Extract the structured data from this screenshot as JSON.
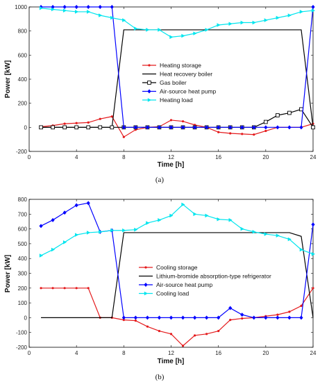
{
  "chart_data": [
    {
      "type": "line",
      "caption": "(a)",
      "xlabel": "Time [h]",
      "ylabel": "Power [kW]",
      "xlim": [
        0,
        24
      ],
      "ylim": [
        -200,
        1000
      ],
      "xticks": [
        0,
        4,
        8,
        12,
        16,
        20,
        24
      ],
      "yticks": [
        -200,
        0,
        200,
        400,
        600,
        800,
        1000
      ],
      "legend": "center",
      "series": [
        {
          "name": "Heating storage",
          "color": "#e41a1c",
          "marker": "dot",
          "x": [
            1,
            2,
            3,
            4,
            5,
            6,
            7,
            8,
            9,
            10,
            11,
            12,
            13,
            14,
            15,
            16,
            17,
            18,
            19,
            20,
            21,
            22,
            23,
            24
          ],
          "y": [
            5,
            15,
            30,
            35,
            40,
            70,
            90,
            -80,
            -20,
            0,
            5,
            60,
            50,
            20,
            0,
            -40,
            -50,
            -55,
            -60,
            -30,
            0,
            0,
            0,
            30
          ]
        },
        {
          "name": "Heat recovery boiler",
          "color": "#000000",
          "marker": "none",
          "x": [
            1,
            2,
            3,
            4,
            5,
            6,
            7,
            8,
            9,
            10,
            11,
            12,
            13,
            14,
            15,
            16,
            17,
            18,
            19,
            20,
            21,
            22,
            23,
            24
          ],
          "y": [
            0,
            0,
            0,
            0,
            0,
            0,
            0,
            810,
            810,
            810,
            810,
            810,
            810,
            810,
            810,
            810,
            810,
            810,
            810,
            810,
            810,
            810,
            810,
            0
          ]
        },
        {
          "name": "Gas boiler",
          "color": "#000000",
          "marker": "square",
          "x": [
            1,
            2,
            3,
            4,
            5,
            6,
            7,
            8,
            9,
            10,
            11,
            12,
            13,
            14,
            15,
            16,
            17,
            18,
            19,
            20,
            21,
            22,
            23,
            24
          ],
          "y": [
            0,
            0,
            0,
            0,
            0,
            0,
            0,
            0,
            0,
            0,
            0,
            0,
            0,
            0,
            0,
            0,
            0,
            0,
            0,
            45,
            100,
            120,
            150,
            0
          ]
        },
        {
          "name": "Air-source heat pump",
          "color": "#0000ff",
          "marker": "diamond",
          "x": [
            1,
            2,
            3,
            4,
            5,
            6,
            7,
            8,
            9,
            10,
            11,
            12,
            13,
            14,
            15,
            16,
            17,
            18,
            19,
            20,
            21,
            22,
            23,
            24
          ],
          "y": [
            1000,
            1000,
            1000,
            1000,
            1000,
            1000,
            1000,
            0,
            0,
            0,
            0,
            0,
            0,
            0,
            0,
            0,
            0,
            0,
            0,
            0,
            0,
            0,
            0,
            1000
          ]
        },
        {
          "name": "Heating load",
          "color": "#00e5ee",
          "marker": "triangle",
          "x": [
            1,
            2,
            3,
            4,
            5,
            6,
            7,
            8,
            9,
            10,
            11,
            12,
            13,
            14,
            15,
            16,
            17,
            18,
            19,
            20,
            21,
            22,
            23,
            24
          ],
          "y": [
            990,
            980,
            970,
            960,
            960,
            930,
            910,
            890,
            820,
            810,
            810,
            750,
            760,
            780,
            810,
            850,
            860,
            870,
            870,
            890,
            910,
            930,
            960,
            970
          ]
        }
      ]
    },
    {
      "type": "line",
      "caption": "(b)",
      "xlabel": "Time [h]",
      "ylabel": "Power [kW]",
      "xlim": [
        0,
        24
      ],
      "ylim": [
        -200,
        800
      ],
      "xticks": [
        0,
        4,
        8,
        12,
        16,
        20,
        24
      ],
      "yticks": [
        -200,
        -100,
        0,
        100,
        200,
        300,
        400,
        500,
        600,
        700,
        800
      ],
      "legend": "center",
      "series": [
        {
          "name": "Cooling storage",
          "color": "#e41a1c",
          "marker": "dot",
          "x": [
            1,
            2,
            3,
            4,
            5,
            6,
            7,
            8,
            9,
            10,
            11,
            12,
            13,
            14,
            15,
            16,
            17,
            18,
            19,
            20,
            21,
            22,
            23,
            24
          ],
          "y": [
            200,
            200,
            200,
            200,
            200,
            0,
            0,
            -15,
            -20,
            -60,
            -90,
            -110,
            -190,
            -120,
            -110,
            -90,
            -15,
            -5,
            0,
            10,
            20,
            40,
            80,
            200
          ]
        },
        {
          "name": "Lithium-bromide absorption-type refrigerator",
          "color": "#000000",
          "marker": "none",
          "x": [
            1,
            2,
            3,
            4,
            5,
            6,
            7,
            8,
            9,
            10,
            11,
            12,
            13,
            14,
            15,
            16,
            17,
            18,
            19,
            20,
            21,
            22,
            23,
            24
          ],
          "y": [
            0,
            0,
            0,
            0,
            0,
            0,
            0,
            575,
            575,
            575,
            575,
            575,
            575,
            575,
            575,
            575,
            575,
            575,
            575,
            575,
            575,
            575,
            550,
            0
          ]
        },
        {
          "name": "Air-source heat pump",
          "color": "#0000ff",
          "marker": "diamond",
          "x": [
            1,
            2,
            3,
            4,
            5,
            6,
            7,
            8,
            9,
            10,
            11,
            12,
            13,
            14,
            15,
            16,
            17,
            18,
            19,
            20,
            21,
            22,
            23,
            24
          ],
          "y": [
            620,
            660,
            710,
            760,
            775,
            580,
            590,
            0,
            0,
            0,
            0,
            0,
            0,
            0,
            0,
            0,
            65,
            20,
            0,
            0,
            0,
            0,
            0,
            630
          ]
        },
        {
          "name": "Cooling load",
          "color": "#00e5ee",
          "marker": "triangle",
          "x": [
            1,
            2,
            3,
            4,
            5,
            6,
            7,
            8,
            9,
            10,
            11,
            12,
            13,
            14,
            15,
            16,
            17,
            18,
            19,
            20,
            21,
            22,
            23,
            24
          ],
          "y": [
            420,
            460,
            510,
            560,
            575,
            580,
            590,
            590,
            595,
            640,
            660,
            690,
            765,
            700,
            690,
            665,
            660,
            600,
            580,
            565,
            555,
            530,
            460,
            430
          ]
        }
      ]
    }
  ]
}
